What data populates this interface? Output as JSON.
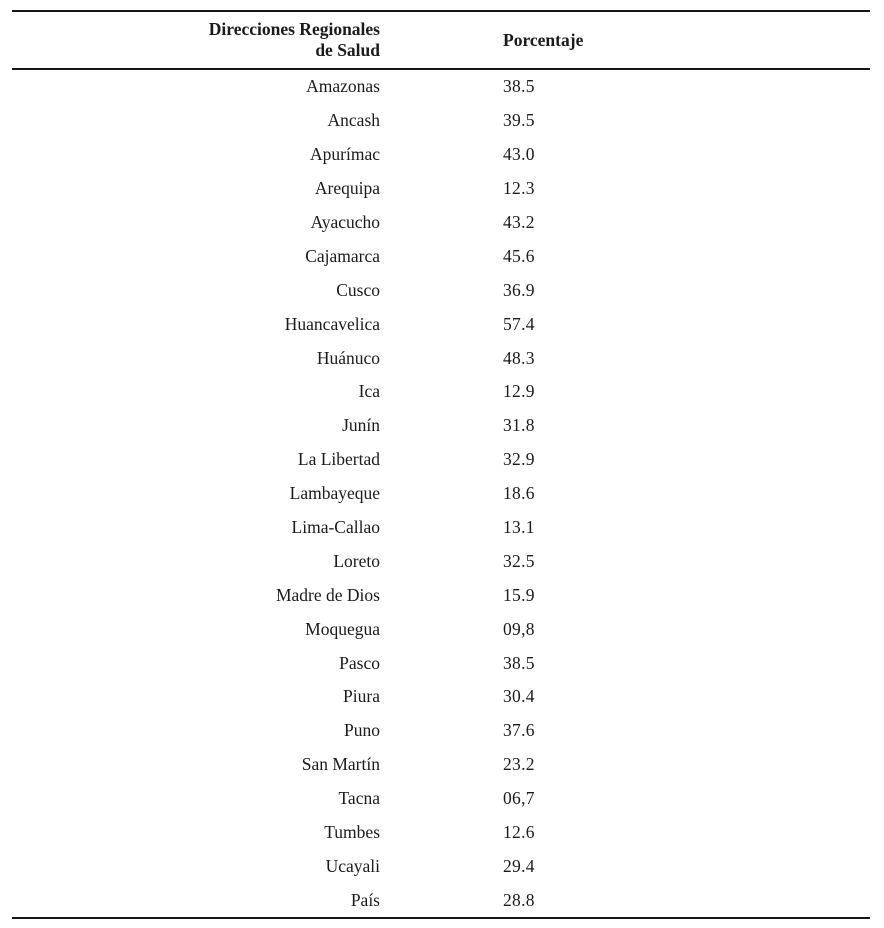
{
  "colors": {
    "background": "#ffffff",
    "text": "#1b1b1b",
    "rule": "#161616"
  },
  "table": {
    "header": {
      "col1_line1": "Direcciones Regionales",
      "col1_line2": "de Salud",
      "col2": "Porcentaje"
    },
    "rows": [
      {
        "region": "Amazonas",
        "porcentaje": "38.5"
      },
      {
        "region": "Ancash",
        "porcentaje": "39.5"
      },
      {
        "region": "Apurímac",
        "porcentaje": "43.0"
      },
      {
        "region": "Arequipa",
        "porcentaje": "12.3"
      },
      {
        "region": "Ayacucho",
        "porcentaje": "43.2"
      },
      {
        "region": "Cajamarca",
        "porcentaje": "45.6"
      },
      {
        "region": "Cusco",
        "porcentaje": "36.9"
      },
      {
        "region": "Huancavelica",
        "porcentaje": "57.4"
      },
      {
        "region": "Huánuco",
        "porcentaje": "48.3"
      },
      {
        "region": "Ica",
        "porcentaje": "12.9"
      },
      {
        "region": "Junín",
        "porcentaje": "31.8"
      },
      {
        "region": "La Libertad",
        "porcentaje": "32.9"
      },
      {
        "region": "Lambayeque",
        "porcentaje": "18.6"
      },
      {
        "region": "Lima-Callao",
        "porcentaje": "13.1"
      },
      {
        "region": "Loreto",
        "porcentaje": "32.5"
      },
      {
        "region": "Madre de Dios",
        "porcentaje": "15.9"
      },
      {
        "region": "Moquegua",
        "porcentaje": "09,8"
      },
      {
        "region": "Pasco",
        "porcentaje": "38.5"
      },
      {
        "region": "Piura",
        "porcentaje": "30.4"
      },
      {
        "region": "Puno",
        "porcentaje": "37.6"
      },
      {
        "region": "San Martín",
        "porcentaje": "23.2"
      },
      {
        "region": "Tacna",
        "porcentaje": "06,7"
      },
      {
        "region": "Tumbes",
        "porcentaje": "12.6"
      },
      {
        "region": "Ucayali",
        "porcentaje": "29.4"
      },
      {
        "region": "País",
        "porcentaje": "28.8"
      }
    ]
  }
}
